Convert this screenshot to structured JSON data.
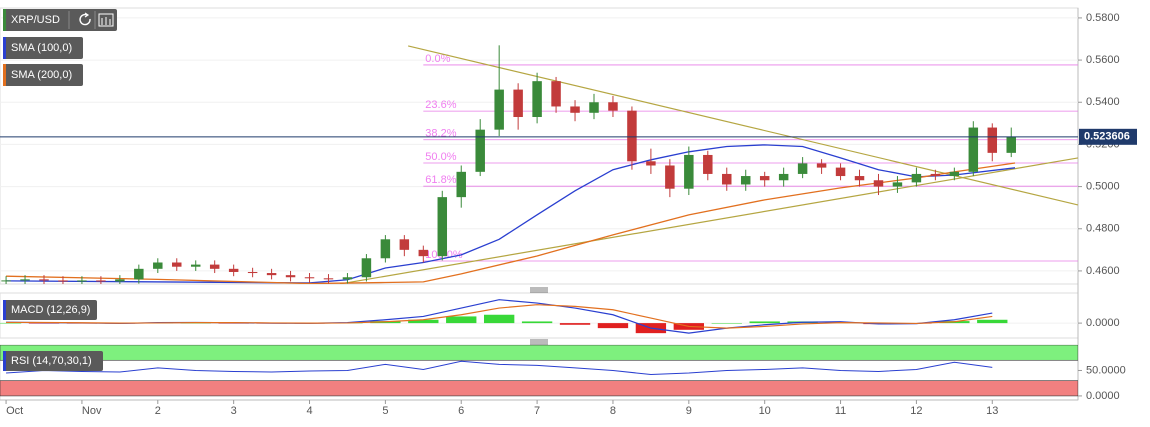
{
  "chart_data": [
    {
      "type": "candlestick",
      "title": "XRP/USD",
      "x": [
        0,
        0.25,
        0.5,
        0.75,
        1,
        1.25,
        1.5,
        1.75,
        2,
        2.25,
        2.5,
        2.75,
        3,
        3.25,
        3.5,
        3.75,
        4,
        4.25,
        4.5,
        4.75,
        5,
        5.25,
        5.5,
        5.75,
        6,
        6.25,
        6.5,
        6.75,
        7,
        7.25,
        7.5,
        7.75,
        8,
        8.25,
        8.5,
        8.75,
        9,
        9.25,
        9.5,
        9.75,
        10,
        10.25,
        10.5,
        10.75,
        11,
        11.25,
        11.5,
        11.75,
        12,
        12.25,
        12.5,
        12.75,
        13,
        13.25
      ],
      "open": [
        0.4552,
        0.4555,
        0.456,
        0.4555,
        0.455,
        0.4555,
        0.455,
        0.456,
        0.461,
        0.464,
        0.462,
        0.463,
        0.461,
        0.4595,
        0.459,
        0.458,
        0.457,
        0.4565,
        0.456,
        0.457,
        0.466,
        0.475,
        0.47,
        0.467,
        0.495,
        0.507,
        0.527,
        0.546,
        0.533,
        0.55,
        0.538,
        0.535,
        0.54,
        0.536,
        0.512,
        0.51,
        0.499,
        0.515,
        0.506,
        0.501,
        0.505,
        0.503,
        0.506,
        0.511,
        0.509,
        0.505,
        0.503,
        0.5,
        0.502,
        0.506,
        0.505,
        0.507,
        0.528,
        0.516
      ],
      "high": [
        0.4575,
        0.458,
        0.458,
        0.4575,
        0.4575,
        0.4575,
        0.458,
        0.463,
        0.466,
        0.466,
        0.465,
        0.465,
        0.463,
        0.4615,
        0.461,
        0.46,
        0.459,
        0.4585,
        0.459,
        0.468,
        0.477,
        0.477,
        0.472,
        0.498,
        0.51,
        0.532,
        0.567,
        0.549,
        0.554,
        0.552,
        0.541,
        0.544,
        0.543,
        0.538,
        0.518,
        0.513,
        0.519,
        0.517,
        0.509,
        0.508,
        0.507,
        0.509,
        0.514,
        0.513,
        0.511,
        0.508,
        0.506,
        0.505,
        0.509,
        0.508,
        0.509,
        0.531,
        0.53,
        0.528
      ],
      "low": [
        0.4532,
        0.4535,
        0.4535,
        0.453,
        0.453,
        0.453,
        0.453,
        0.454,
        0.459,
        0.46,
        0.46,
        0.459,
        0.4575,
        0.457,
        0.456,
        0.455,
        0.4545,
        0.454,
        0.454,
        0.455,
        0.464,
        0.467,
        0.464,
        0.465,
        0.49,
        0.505,
        0.524,
        0.527,
        0.53,
        0.535,
        0.531,
        0.532,
        0.533,
        0.508,
        0.506,
        0.495,
        0.496,
        0.503,
        0.498,
        0.498,
        0.5,
        0.5,
        0.504,
        0.506,
        0.503,
        0.5,
        0.496,
        0.497,
        0.5,
        0.503,
        0.503,
        0.505,
        0.512,
        0.514
      ],
      "close": [
        0.4555,
        0.456,
        0.4555,
        0.455,
        0.4555,
        0.455,
        0.456,
        0.461,
        0.464,
        0.462,
        0.463,
        0.461,
        0.4595,
        0.459,
        0.458,
        0.457,
        0.4565,
        0.456,
        0.457,
        0.466,
        0.475,
        0.47,
        0.467,
        0.495,
        0.507,
        0.527,
        0.546,
        0.533,
        0.55,
        0.538,
        0.535,
        0.54,
        0.536,
        0.512,
        0.51,
        0.499,
        0.515,
        0.506,
        0.501,
        0.505,
        0.503,
        0.506,
        0.511,
        0.509,
        0.505,
        0.503,
        0.5,
        0.502,
        0.506,
        0.505,
        0.507,
        0.528,
        0.516,
        0.5236
      ],
      "up_color": "#3a8a3a",
      "down_color": "#c23b3b",
      "series": [
        {
          "name": "SMA (100,0)",
          "color": "#2a3fd0",
          "x": [
            0,
            4,
            4.5,
            5,
            5.5,
            6,
            6.5,
            7,
            7.5,
            8,
            8.5,
            9,
            9.5,
            10,
            10.5,
            11,
            11.5,
            12,
            12.5,
            13.3
          ],
          "values": [
            0.4553,
            0.4543,
            0.4558,
            0.4614,
            0.464,
            0.4676,
            0.475,
            0.4866,
            0.498,
            0.508,
            0.5127,
            0.5165,
            0.519,
            0.5198,
            0.519,
            0.5136,
            0.508,
            0.5046,
            0.5055,
            0.5089
          ]
        },
        {
          "name": "SMA (200,0)",
          "color": "#e2701f",
          "x": [
            0,
            2,
            4,
            5,
            5.5,
            6,
            7,
            8,
            9,
            10,
            11,
            12,
            12.5,
            13.3
          ],
          "values": [
            0.4575,
            0.456,
            0.454,
            0.4545,
            0.4548,
            0.4586,
            0.4671,
            0.4771,
            0.4866,
            0.4937,
            0.4994,
            0.5041,
            0.507,
            0.5112
          ]
        }
      ],
      "trendlines": [
        {
          "color": "#b5a642",
          "x": [
            5.3,
            14.13
          ],
          "values": [
            0.5667,
            0.4913
          ]
        },
        {
          "color": "#b5a642",
          "x": [
            4.4,
            14.13
          ],
          "values": [
            0.4538,
            0.5136
          ]
        }
      ],
      "fib_levels": {
        "color": "#e77be7",
        "x": 5.5,
        "levels": [
          {
            "label": "0.0%",
            "value": 0.5577
          },
          {
            "label": "23.6%",
            "value": 0.5358
          },
          {
            "label": "38.2%",
            "value": 0.5222
          },
          {
            "label": "50.0%",
            "value": 0.5112
          },
          {
            "label": "61.8%",
            "value": 0.5002
          },
          {
            "label": "100.0%",
            "value": 0.4647
          }
        ]
      },
      "last_price": 0.523606,
      "last_price_color": "#1f3a6b",
      "xlim": [
        -0.08,
        14.13
      ],
      "xticks": [
        {
          "value": 0,
          "label": "Oct"
        },
        {
          "value": 1,
          "label": "Nov"
        },
        2,
        3,
        4,
        5,
        6,
        7,
        8,
        9,
        10,
        11,
        12,
        13
      ],
      "ylim": [
        0.4538,
        0.5847
      ],
      "yticks": [
        {
          "value": 0.46,
          "label": "0.4600"
        },
        {
          "value": 0.48,
          "label": "0.4800"
        },
        {
          "value": 0.5,
          "label": "0.5000"
        },
        {
          "value": 0.52,
          "label": "0.5200"
        },
        {
          "value": 0.54,
          "label": "0.5400"
        },
        {
          "value": 0.56,
          "label": "0.5600"
        },
        {
          "value": 0.58,
          "label": "0.5800"
        }
      ]
    },
    {
      "type": "macd",
      "title": "MACD (12,26,9)",
      "x": [
        0,
        0.5,
        1,
        1.5,
        2,
        2.5,
        3,
        3.5,
        4,
        4.5,
        5,
        5.5,
        6,
        6.5,
        7,
        7.5,
        8,
        8.5,
        9,
        9.5,
        10,
        10.5,
        11,
        11.5,
        12,
        12.5,
        13
      ],
      "series": [
        {
          "color": "#2a3fd0",
          "values": [
            0.0005,
            0.0003,
            0.0001,
            -0.0002,
            0.0003,
            0.0004,
            0.0002,
            0,
            -0.0001,
            0.0003,
            0.002,
            0.004,
            0.009,
            0.014,
            0.012,
            0.009,
            0.005,
            -0.003,
            -0.006,
            -0.003,
            -0.001,
            0.0005,
            0.0008,
            -0.0005,
            -0.0003,
            0.002,
            0.006
          ]
        },
        {
          "color": "#e2701f",
          "values": [
            0.0004,
            0.0004,
            0.0002,
            0,
            0.0001,
            0.0003,
            0.0003,
            0.0001,
            0,
            0.0001,
            0.0008,
            0.002,
            0.005,
            0.009,
            0.011,
            0.01,
            0.008,
            0.003,
            -0.002,
            -0.003,
            -0.002,
            -0.0005,
            0.0003,
            0.0001,
            -0.0002,
            0.0008,
            0.004
          ]
        }
      ],
      "histogram": {
        "up_color": "#38d838",
        "down_color": "#e02020",
        "values": [
          0.0001,
          -0.0001,
          -0.0001,
          -0.0002,
          0.0002,
          0.0001,
          -0.0001,
          -0.0001,
          -0.0001,
          0.0002,
          0.0012,
          0.002,
          0.004,
          0.005,
          0.001,
          -0.001,
          -0.003,
          -0.006,
          -0.004,
          0,
          0.001,
          0.001,
          0.0005,
          -0.0006,
          -0.0001,
          0.0012,
          0.002
        ]
      },
      "ylim": [
        -0.0089,
        0.018
      ],
      "yticks": [
        {
          "value": 0,
          "label": "0.0000"
        }
      ]
    },
    {
      "type": "rsi",
      "title": "RSI (14,70,30,1)",
      "x": [
        0,
        0.5,
        1,
        1.5,
        2,
        2.5,
        3,
        3.5,
        4,
        4.5,
        5,
        5.5,
        6,
        6.5,
        7,
        7.5,
        8,
        8.5,
        9,
        9.5,
        10,
        10.5,
        11,
        11.5,
        12,
        12.5,
        13
      ],
      "values": [
        45,
        50,
        48,
        47,
        55,
        50,
        48,
        47,
        49,
        50,
        62,
        52,
        68,
        62,
        60,
        55,
        50,
        42,
        45,
        50,
        52,
        55,
        50,
        48,
        52,
        66,
        56
      ],
      "color": "#2a3fd0",
      "bands": [
        {
          "from": 70,
          "to": 100,
          "color": "#7ef07e"
        },
        {
          "from": 0,
          "to": 30,
          "color": "#f28080"
        }
      ],
      "ylim": [
        -8,
        100
      ],
      "yticks": [
        {
          "value": 0,
          "label": "0.0000"
        },
        {
          "value": 50,
          "label": "50.0000"
        }
      ]
    }
  ]
}
